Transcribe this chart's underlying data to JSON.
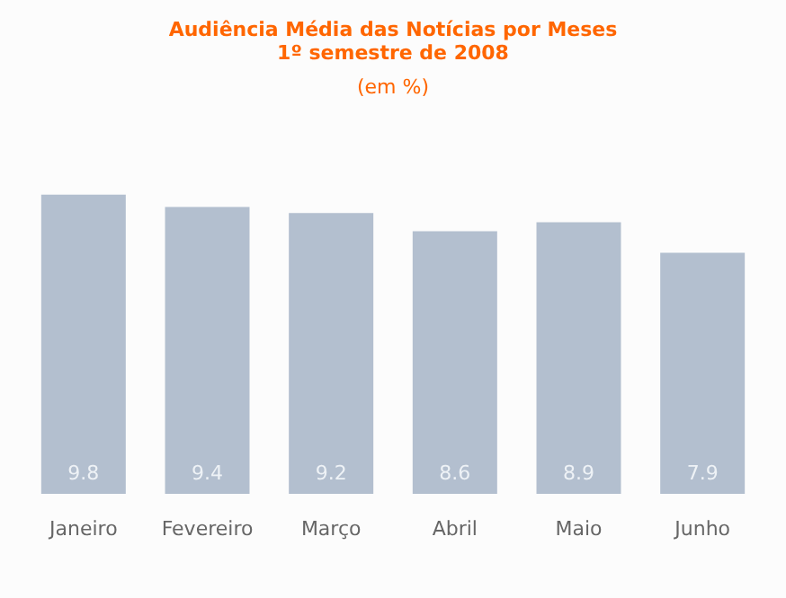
{
  "chart_data": {
    "type": "bar",
    "title": "Audiência Média das Notícias por Meses",
    "subtitle": "1º semestre de 2008",
    "annotations": [
      "(em %)"
    ],
    "categories": [
      "Janeiro",
      "Fevereiro",
      "Março",
      "Abril",
      "Maio",
      "Junho"
    ],
    "values": [
      9.8,
      9.4,
      9.2,
      8.6,
      8.9,
      7.9
    ],
    "color": "#b3bfcf",
    "data_labels": true
  }
}
